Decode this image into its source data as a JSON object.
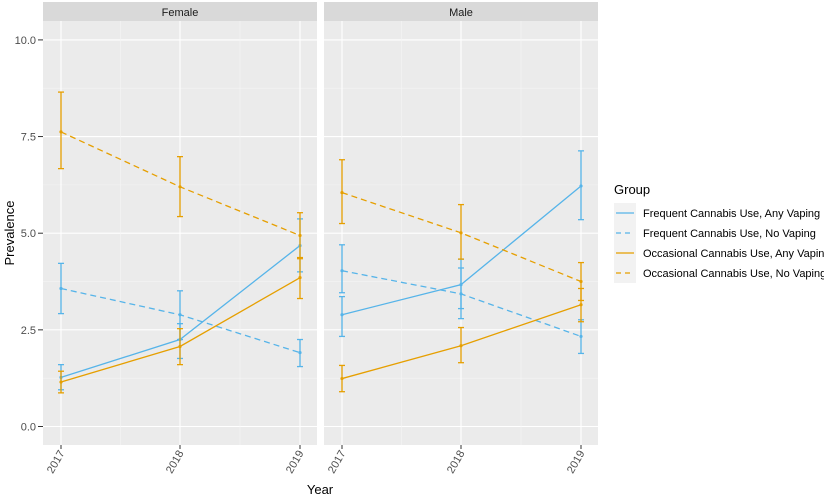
{
  "chart_data": {
    "type": "line",
    "xlabel": "Year",
    "ylabel": "Prevalence",
    "ylim": [
      -0.5,
      10.5
    ],
    "yticks": [
      "0.0",
      "2.5",
      "5.0",
      "7.5",
      "10.0"
    ],
    "ytick_values": [
      0,
      2.5,
      5,
      7.5,
      10
    ],
    "categories": [
      "2017",
      "2018",
      "2019"
    ],
    "grid": true,
    "legend": {
      "title": "Group",
      "position": "right",
      "entries": [
        {
          "label": "Frequent Cannabis Use, Any Vaping",
          "color": "#56B4E9",
          "linetype": "solid"
        },
        {
          "label": "Frequent Cannabis Use, No Vaping",
          "color": "#56B4E9",
          "linetype": "dashed"
        },
        {
          "label": "Occasional Cannabis Use, Any Vaping",
          "color": "#E69F00",
          "linetype": "solid"
        },
        {
          "label": "Occasional Cannabis Use, No Vaping",
          "color": "#E69F00",
          "linetype": "dashed"
        }
      ]
    },
    "panels": [
      {
        "title": "Female",
        "series": [
          {
            "name": "Frequent Cannabis Use, Any Vaping",
            "values": [
              1.27,
              2.25,
              4.68
            ],
            "lower": [
              0.95,
              1.76,
              4.0
            ],
            "upper": [
              1.6,
              2.66,
              5.37
            ]
          },
          {
            "name": "Frequent Cannabis Use, No Vaping",
            "values": [
              3.57,
              2.89,
              1.91
            ],
            "lower": [
              2.92,
              2.25,
              1.55
            ],
            "upper": [
              4.22,
              3.51,
              2.25
            ]
          },
          {
            "name": "Occasional Cannabis Use, Any Vaping",
            "values": [
              1.15,
              2.07,
              3.85
            ],
            "lower": [
              0.87,
              1.6,
              3.31
            ],
            "upper": [
              1.43,
              2.53,
              4.37
            ]
          },
          {
            "name": "Occasional Cannabis Use, No Vaping",
            "values": [
              7.62,
              6.2,
              4.94
            ],
            "lower": [
              6.67,
              5.43,
              4.34
            ],
            "upper": [
              8.65,
              6.98,
              5.53
            ]
          }
        ]
      },
      {
        "title": "Male",
        "series": [
          {
            "name": "Frequent Cannabis Use, Any Vaping",
            "values": [
              2.89,
              3.67,
              6.22
            ],
            "lower": [
              2.33,
              2.79,
              5.35
            ],
            "upper": [
              3.36,
              4.33,
              7.13
            ]
          },
          {
            "name": "Frequent Cannabis Use, No Vaping",
            "values": [
              4.03,
              3.43,
              2.33
            ],
            "lower": [
              3.46,
              3.05,
              1.89
            ],
            "upper": [
              4.7,
              4.1,
              2.76
            ]
          },
          {
            "name": "Occasional Cannabis Use, Any Vaping",
            "values": [
              1.24,
              2.09,
              3.15
            ],
            "lower": [
              0.9,
              1.65,
              2.71
            ],
            "upper": [
              1.58,
              2.56,
              3.57
            ]
          },
          {
            "name": "Occasional Cannabis Use, No Vaping",
            "values": [
              6.05,
              5.01,
              3.75
            ],
            "lower": [
              5.25,
              4.33,
              3.26
            ],
            "upper": [
              6.9,
              5.74,
              4.24
            ]
          }
        ]
      }
    ]
  }
}
